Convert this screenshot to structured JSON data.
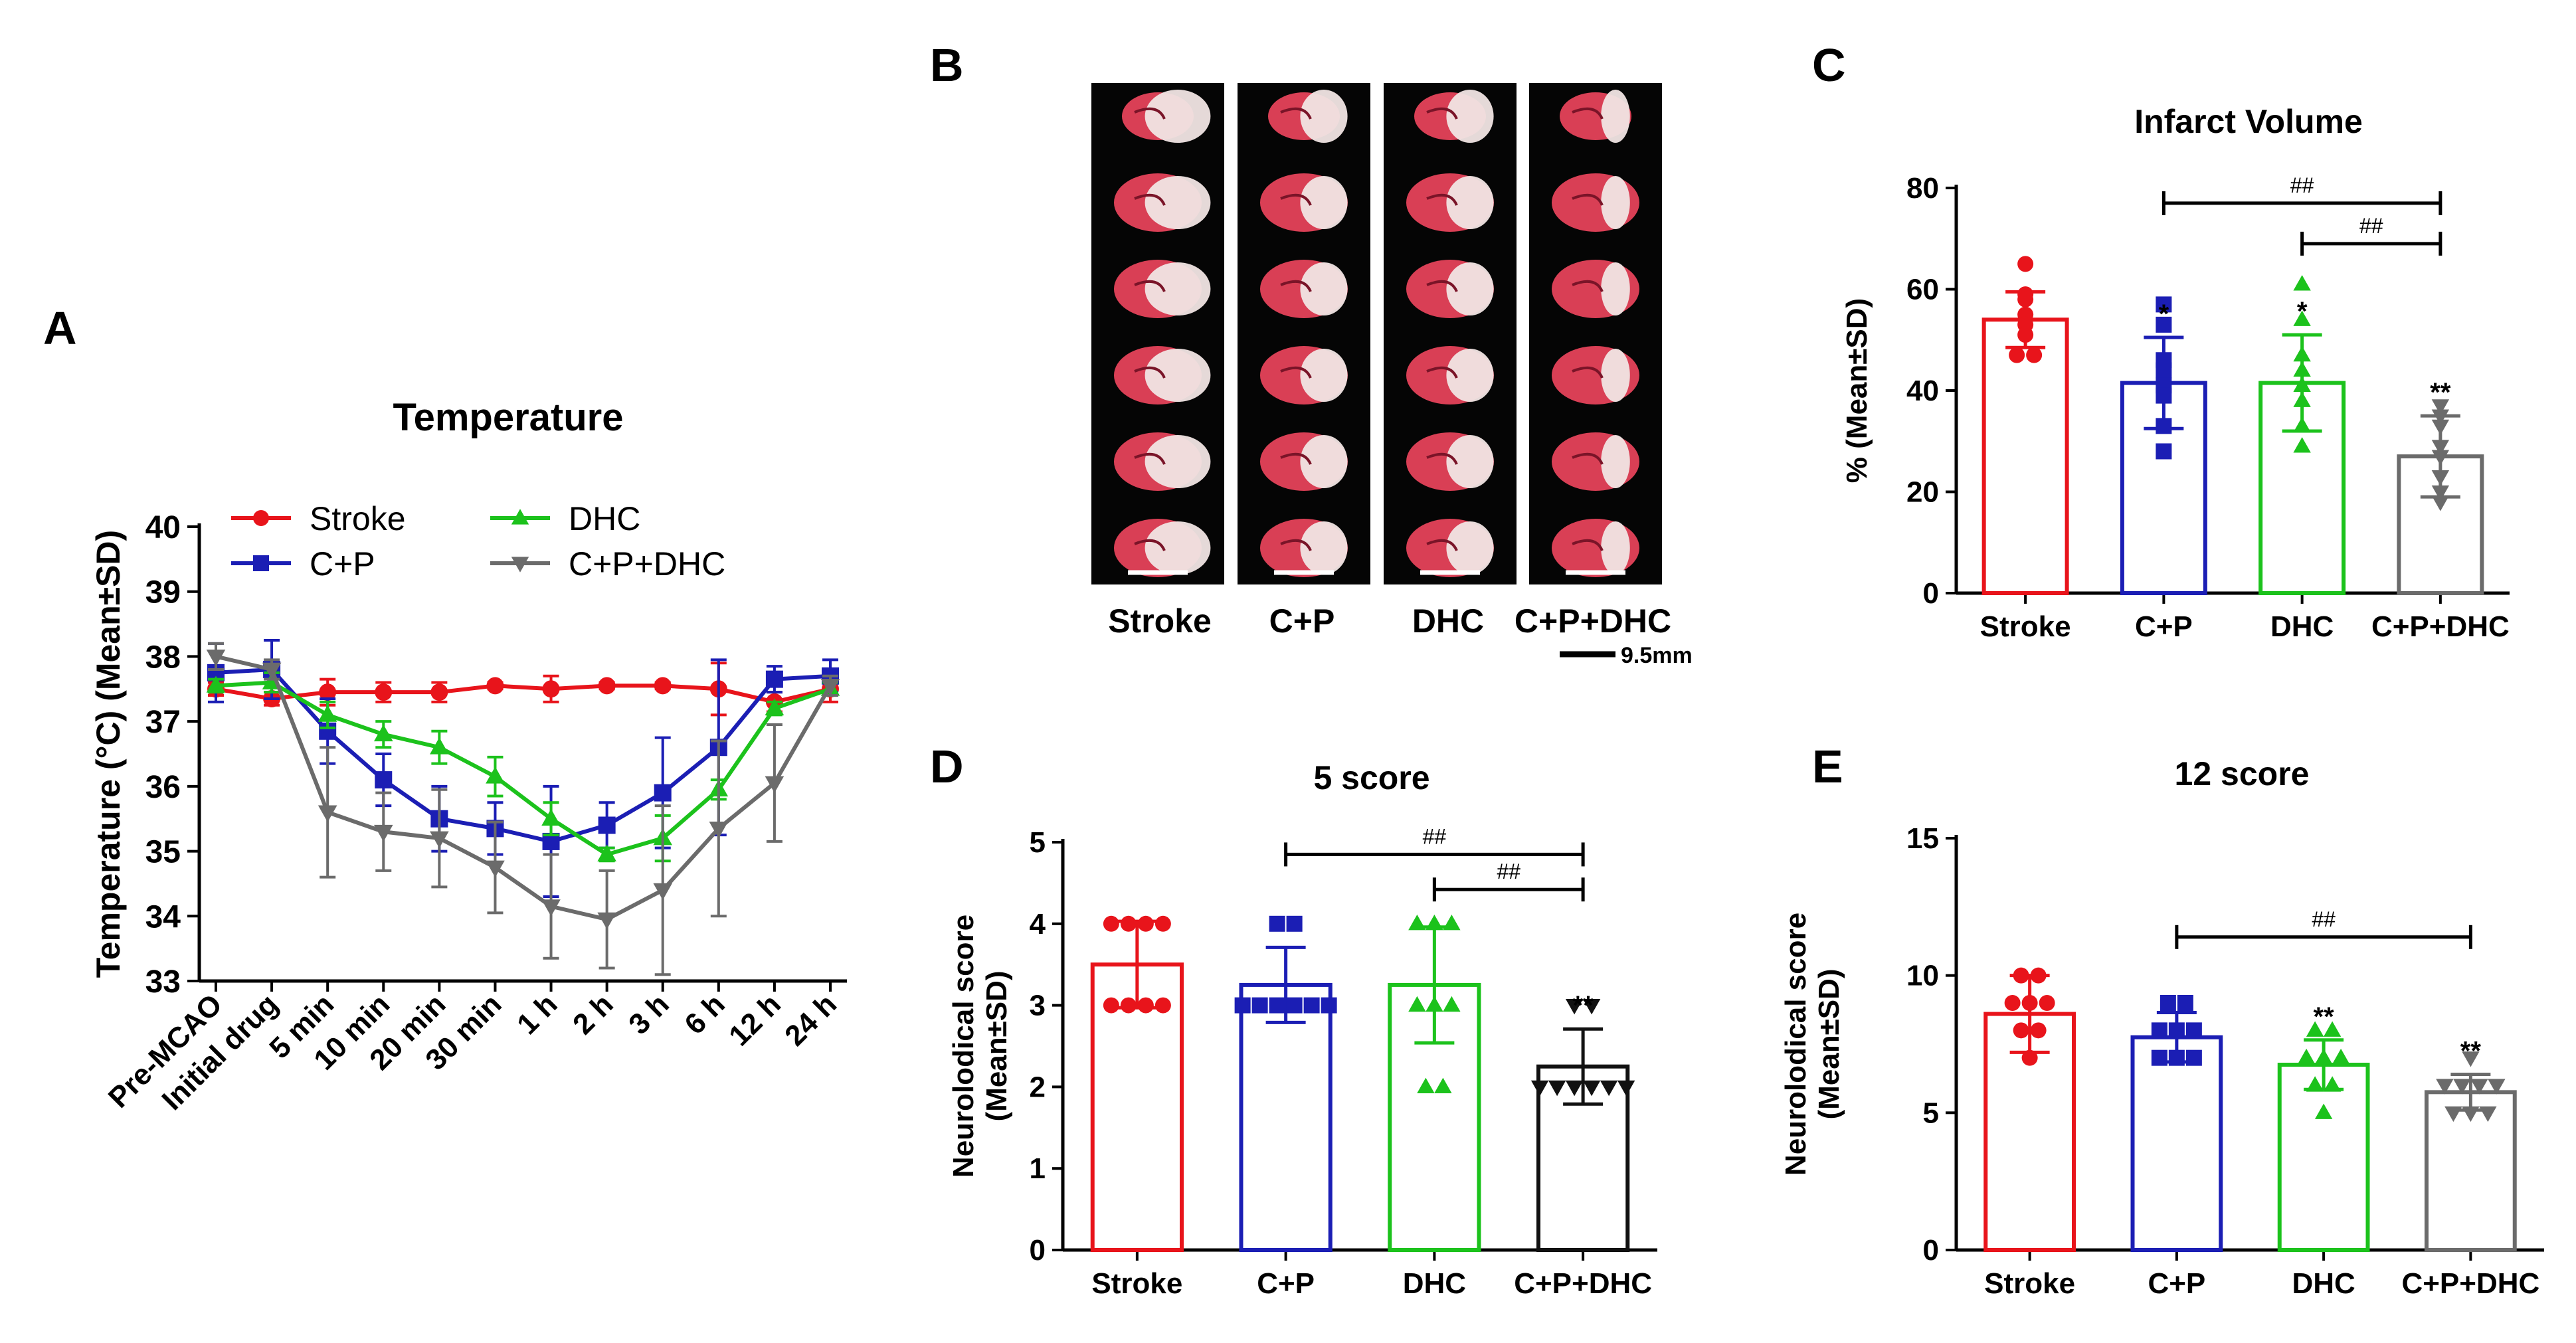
{
  "colors": {
    "Stroke": "#e8141b",
    "C+P": "#1b1eb4",
    "DHC": "#1cc21c",
    "C+P+DHC": "#6b6b6b",
    "neuro_combo": "#111111",
    "axis": "#000000"
  },
  "panels": {
    "A": {
      "letter": "A"
    },
    "B": {
      "letter": "B",
      "groups": [
        "Stroke",
        "C+P",
        "DHC",
        "C+P+DHC"
      ],
      "scale_label": "9.5mm"
    },
    "C": {
      "letter": "C"
    },
    "D": {
      "letter": "D"
    },
    "E": {
      "letter": "E"
    }
  },
  "chart_data": [
    {
      "id": "A",
      "type": "line",
      "title": "Temperature",
      "xlabel": "",
      "ylabel": "Temperature (°C) (Mean±SD)",
      "ylim": [
        33,
        40
      ],
      "yticks": [
        33,
        34,
        35,
        36,
        37,
        38,
        39,
        40
      ],
      "categories": [
        "Pre-MCAO",
        "Initial drug",
        "5 min",
        "10 min",
        "20 min",
        "30 min",
        "1 h",
        "2 h",
        "3 h",
        "6 h",
        "12 h",
        "24 h"
      ],
      "legend_position": "top-left",
      "series": [
        {
          "name": "Stroke",
          "marker": "circle",
          "values": [
            37.5,
            37.35,
            37.45,
            37.45,
            37.45,
            37.55,
            37.5,
            37.55,
            37.55,
            37.5,
            37.3,
            37.5
          ],
          "sd": [
            0.1,
            0.1,
            0.2,
            0.15,
            0.15,
            0.05,
            0.2,
            0.05,
            0.05,
            0.4,
            0.15,
            0.2
          ]
        },
        {
          "name": "C+P",
          "marker": "square",
          "values": [
            37.75,
            37.8,
            36.85,
            36.1,
            35.5,
            35.35,
            35.15,
            35.4,
            35.9,
            36.6,
            37.65,
            37.7
          ],
          "sd": [
            0.45,
            0.45,
            0.5,
            0.4,
            0.5,
            0.4,
            0.85,
            0.35,
            0.85,
            1.35,
            0.2,
            0.25
          ]
        },
        {
          "name": "DHC",
          "marker": "triangle-up",
          "values": [
            37.55,
            37.6,
            37.1,
            36.8,
            36.6,
            36.15,
            35.5,
            34.95,
            35.2,
            35.95,
            37.2,
            37.5
          ],
          "sd": [
            0.1,
            0.15,
            0.2,
            0.2,
            0.25,
            0.3,
            0.25,
            0.1,
            0.35,
            0.15,
            0.1,
            0.1
          ]
        },
        {
          "name": "C+P+DHC",
          "marker": "triangle-down",
          "values": [
            38.0,
            37.8,
            35.6,
            35.3,
            35.2,
            34.75,
            34.15,
            33.95,
            34.4,
            35.35,
            36.05,
            37.55
          ],
          "sd": [
            0.2,
            0.15,
            1.0,
            0.6,
            0.75,
            0.7,
            0.8,
            0.75,
            1.3,
            1.35,
            0.9,
            0.15
          ]
        }
      ]
    },
    {
      "id": "C",
      "type": "bar",
      "title": "Infarct Volume",
      "xlabel": "",
      "ylabel": "% (Mean±SD)",
      "ylim": [
        0,
        80
      ],
      "yticks": [
        0,
        20,
        40,
        60,
        80
      ],
      "categories": [
        "Stroke",
        "C+P",
        "DHC",
        "C+P+DHC"
      ],
      "values": [
        54,
        41.5,
        41.5,
        27
      ],
      "sd": [
        5.5,
        9,
        9.5,
        8
      ],
      "points": [
        [
          65,
          59,
          58,
          55,
          53,
          51,
          47,
          47
        ],
        [
          57,
          53,
          46,
          44,
          41,
          39,
          33,
          28
        ],
        [
          61,
          54,
          47,
          44,
          41,
          38,
          33,
          29
        ],
        [
          37,
          35,
          33,
          29,
          27,
          23,
          20,
          18
        ]
      ],
      "annotations": [
        "",
        "*",
        "*",
        "**"
      ],
      "brackets": [
        {
          "from": 1,
          "to": 3,
          "y": 77,
          "label": "##"
        },
        {
          "from": 2,
          "to": 3,
          "y": 69,
          "label": "##"
        }
      ]
    },
    {
      "id": "D",
      "type": "bar",
      "title": "5 score",
      "xlabel": "",
      "ylabel": "Neurolodical score (Mean±SD)",
      "ylim": [
        0,
        5
      ],
      "yticks": [
        0,
        1,
        2,
        3,
        4,
        5
      ],
      "categories": [
        "Stroke",
        "C+P",
        "DHC",
        "C+P+DHC"
      ],
      "values": [
        3.5,
        3.25,
        3.25,
        2.25
      ],
      "sd": [
        0.53,
        0.46,
        0.71,
        0.46
      ],
      "points": [
        [
          4,
          4,
          4,
          4,
          3,
          3,
          3,
          3
        ],
        [
          4,
          4,
          3,
          3,
          3,
          3,
          3,
          3
        ],
        [
          4,
          4,
          4,
          3,
          3,
          3,
          2,
          2
        ],
        [
          3,
          3,
          2,
          2,
          2,
          2,
          2,
          2
        ]
      ],
      "annotations": [
        "",
        "",
        "",
        "**"
      ],
      "brackets": [
        {
          "from": 1,
          "to": 3,
          "y": 4.85,
          "label": "##"
        },
        {
          "from": 2,
          "to": 3,
          "y": 4.42,
          "label": "##"
        }
      ]
    },
    {
      "id": "E",
      "type": "bar",
      "title": "12 score",
      "xlabel": "",
      "ylabel": "Neurolodical score (Mean±SD)",
      "ylim": [
        0,
        15
      ],
      "yticks": [
        0,
        5,
        10,
        15
      ],
      "categories": [
        "Stroke",
        "C+P",
        "DHC",
        "C+P+DHC"
      ],
      "values": [
        8.6,
        7.75,
        6.75,
        5.75
      ],
      "sd": [
        1.4,
        0.9,
        0.9,
        0.65
      ],
      "points": [
        [
          10,
          10,
          9,
          9,
          9,
          8,
          8,
          7
        ],
        [
          9,
          9,
          8,
          8,
          8,
          7,
          7,
          7
        ],
        [
          8,
          8,
          7,
          7,
          7,
          6,
          6,
          5
        ],
        [
          7,
          6,
          6,
          6,
          6,
          5,
          5,
          5
        ]
      ],
      "annotations": [
        "",
        "",
        "**",
        "**"
      ],
      "brackets": [
        {
          "from": 1,
          "to": 3,
          "y": 11.4,
          "label": "##"
        }
      ]
    }
  ]
}
